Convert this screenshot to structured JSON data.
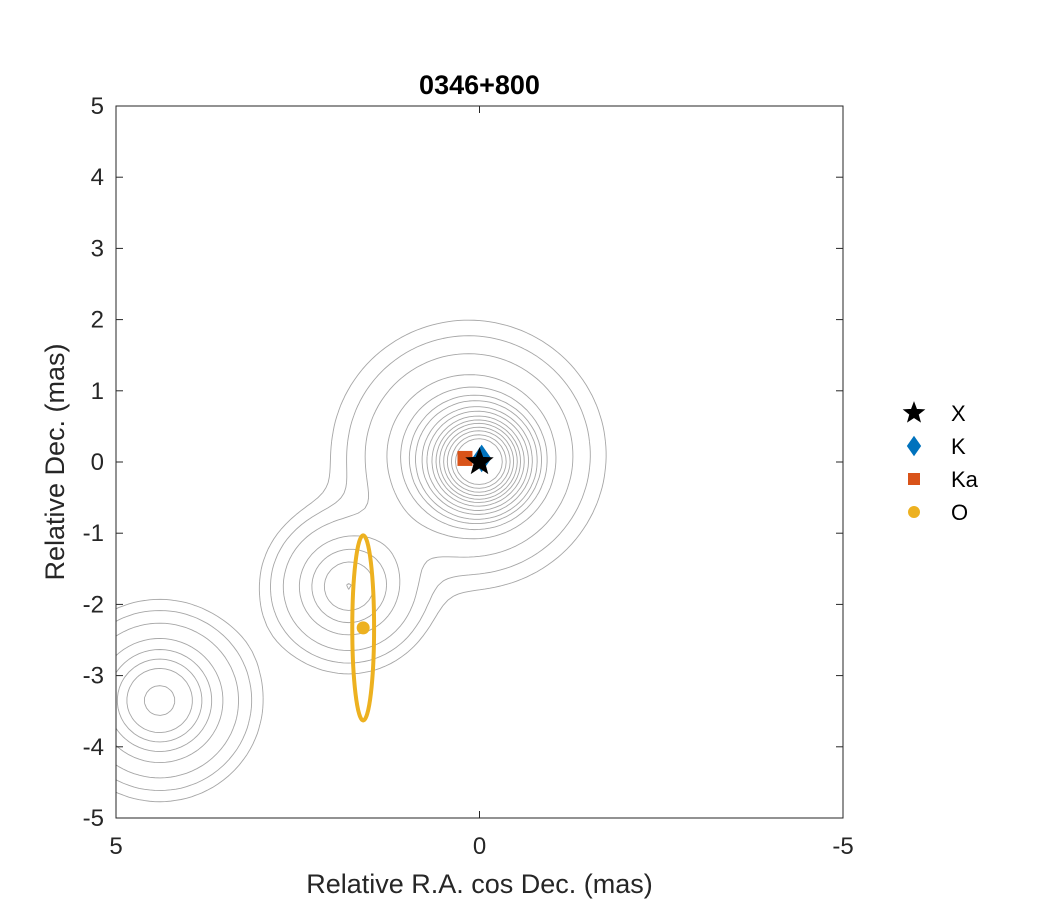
{
  "chart_data": {
    "type": "scatter",
    "title": "0346+800",
    "xlabel": "Relative R.A. cos Dec. (mas)",
    "ylabel": "Relative Dec. (mas)",
    "xlim": [
      5,
      -5
    ],
    "ylim": [
      -5,
      5
    ],
    "x_reversed": true,
    "x_ticks": [
      5,
      0,
      -5
    ],
    "x_tick_labels": [
      "5",
      "0",
      "-5"
    ],
    "y_ticks": [
      5,
      4,
      3,
      2,
      1,
      0,
      -1,
      -2,
      -3,
      -4,
      -5
    ],
    "y_tick_labels": [
      "5",
      "4",
      "3",
      "2",
      "1",
      "0",
      "-1",
      "-2",
      "-3",
      "-4",
      "-5"
    ],
    "grid": false,
    "legend_position": "outside-right",
    "contour_color": "#a6a6a6",
    "series": [
      {
        "name": "X",
        "marker": "star",
        "color": "#000000",
        "points": [
          {
            "x": 0.0,
            "y": 0.0
          }
        ],
        "errors": []
      },
      {
        "name": "K",
        "marker": "diamond",
        "color": "#0072bd",
        "points": [
          {
            "x": -0.03,
            "y": 0.05
          }
        ],
        "errors": []
      },
      {
        "name": "Ka",
        "marker": "square",
        "color": "#d95319",
        "points": [
          {
            "x": 0.2,
            "y": 0.05
          }
        ],
        "errors": []
      },
      {
        "name": "O",
        "marker": "circle",
        "color": "#edb120",
        "points": [
          {
            "x": 1.6,
            "y": -2.33
          }
        ],
        "errors": [
          {
            "x": 1.6,
            "y": -2.33,
            "rx": 0.15,
            "ry": 1.3
          }
        ]
      }
    ],
    "contour_components": [
      {
        "x": 0.0,
        "y": 0.0,
        "flux": 6.0,
        "sigma": 0.35
      },
      {
        "x": 0.15,
        "y": 0.1,
        "flux": 1.2,
        "sigma": 0.75
      },
      {
        "x": 1.8,
        "y": -1.75,
        "flux": 1.0,
        "sigma": 0.5
      },
      {
        "x": 4.4,
        "y": -3.35,
        "flux": 1.4,
        "sigma": 0.55
      }
    ],
    "contour_levels": [
      0.05,
      0.1,
      0.2,
      0.4,
      0.6,
      0.8,
      1.0,
      1.3,
      1.6,
      2.0,
      2.4,
      2.8,
      3.3,
      3.8,
      4.4,
      5.0
    ]
  }
}
